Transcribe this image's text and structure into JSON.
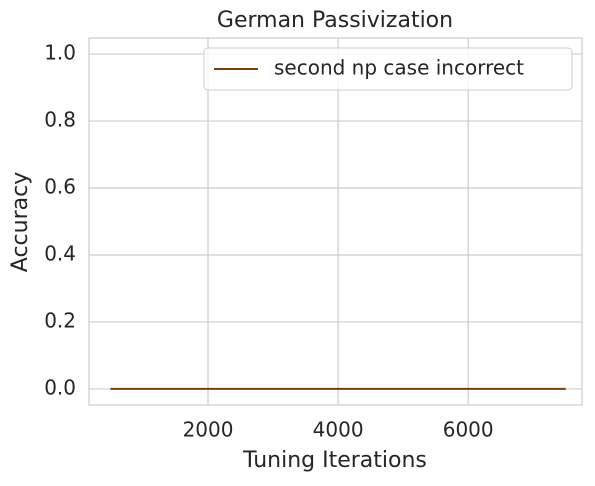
{
  "chart_data": {
    "type": "line",
    "title": "German Passivization",
    "x_label": "Tuning Iterations",
    "y_label": "Accuracy",
    "x": [
      500,
      1000,
      1500,
      2000,
      2500,
      3000,
      3500,
      4000,
      4500,
      5000,
      5500,
      6000,
      6500,
      7000,
      7500
    ],
    "series": [
      {
        "name": "second np case incorrect",
        "color": "#7f3f00",
        "values": [
          0,
          0,
          0,
          0,
          0,
          0,
          0,
          0,
          0,
          0,
          0,
          0,
          0,
          0,
          0
        ]
      }
    ],
    "xlim": [
      170,
      7750
    ],
    "xticks": [
      2000,
      4000,
      6000
    ],
    "ylim": [
      -0.048,
      1.048
    ],
    "yticks": [
      {
        "value": 0,
        "label": "0.0"
      },
      0.2,
      0.4,
      0.6,
      0.8,
      {
        "value": 1,
        "label": "1.0"
      }
    ],
    "grid": true,
    "legend": "upper-right"
  }
}
